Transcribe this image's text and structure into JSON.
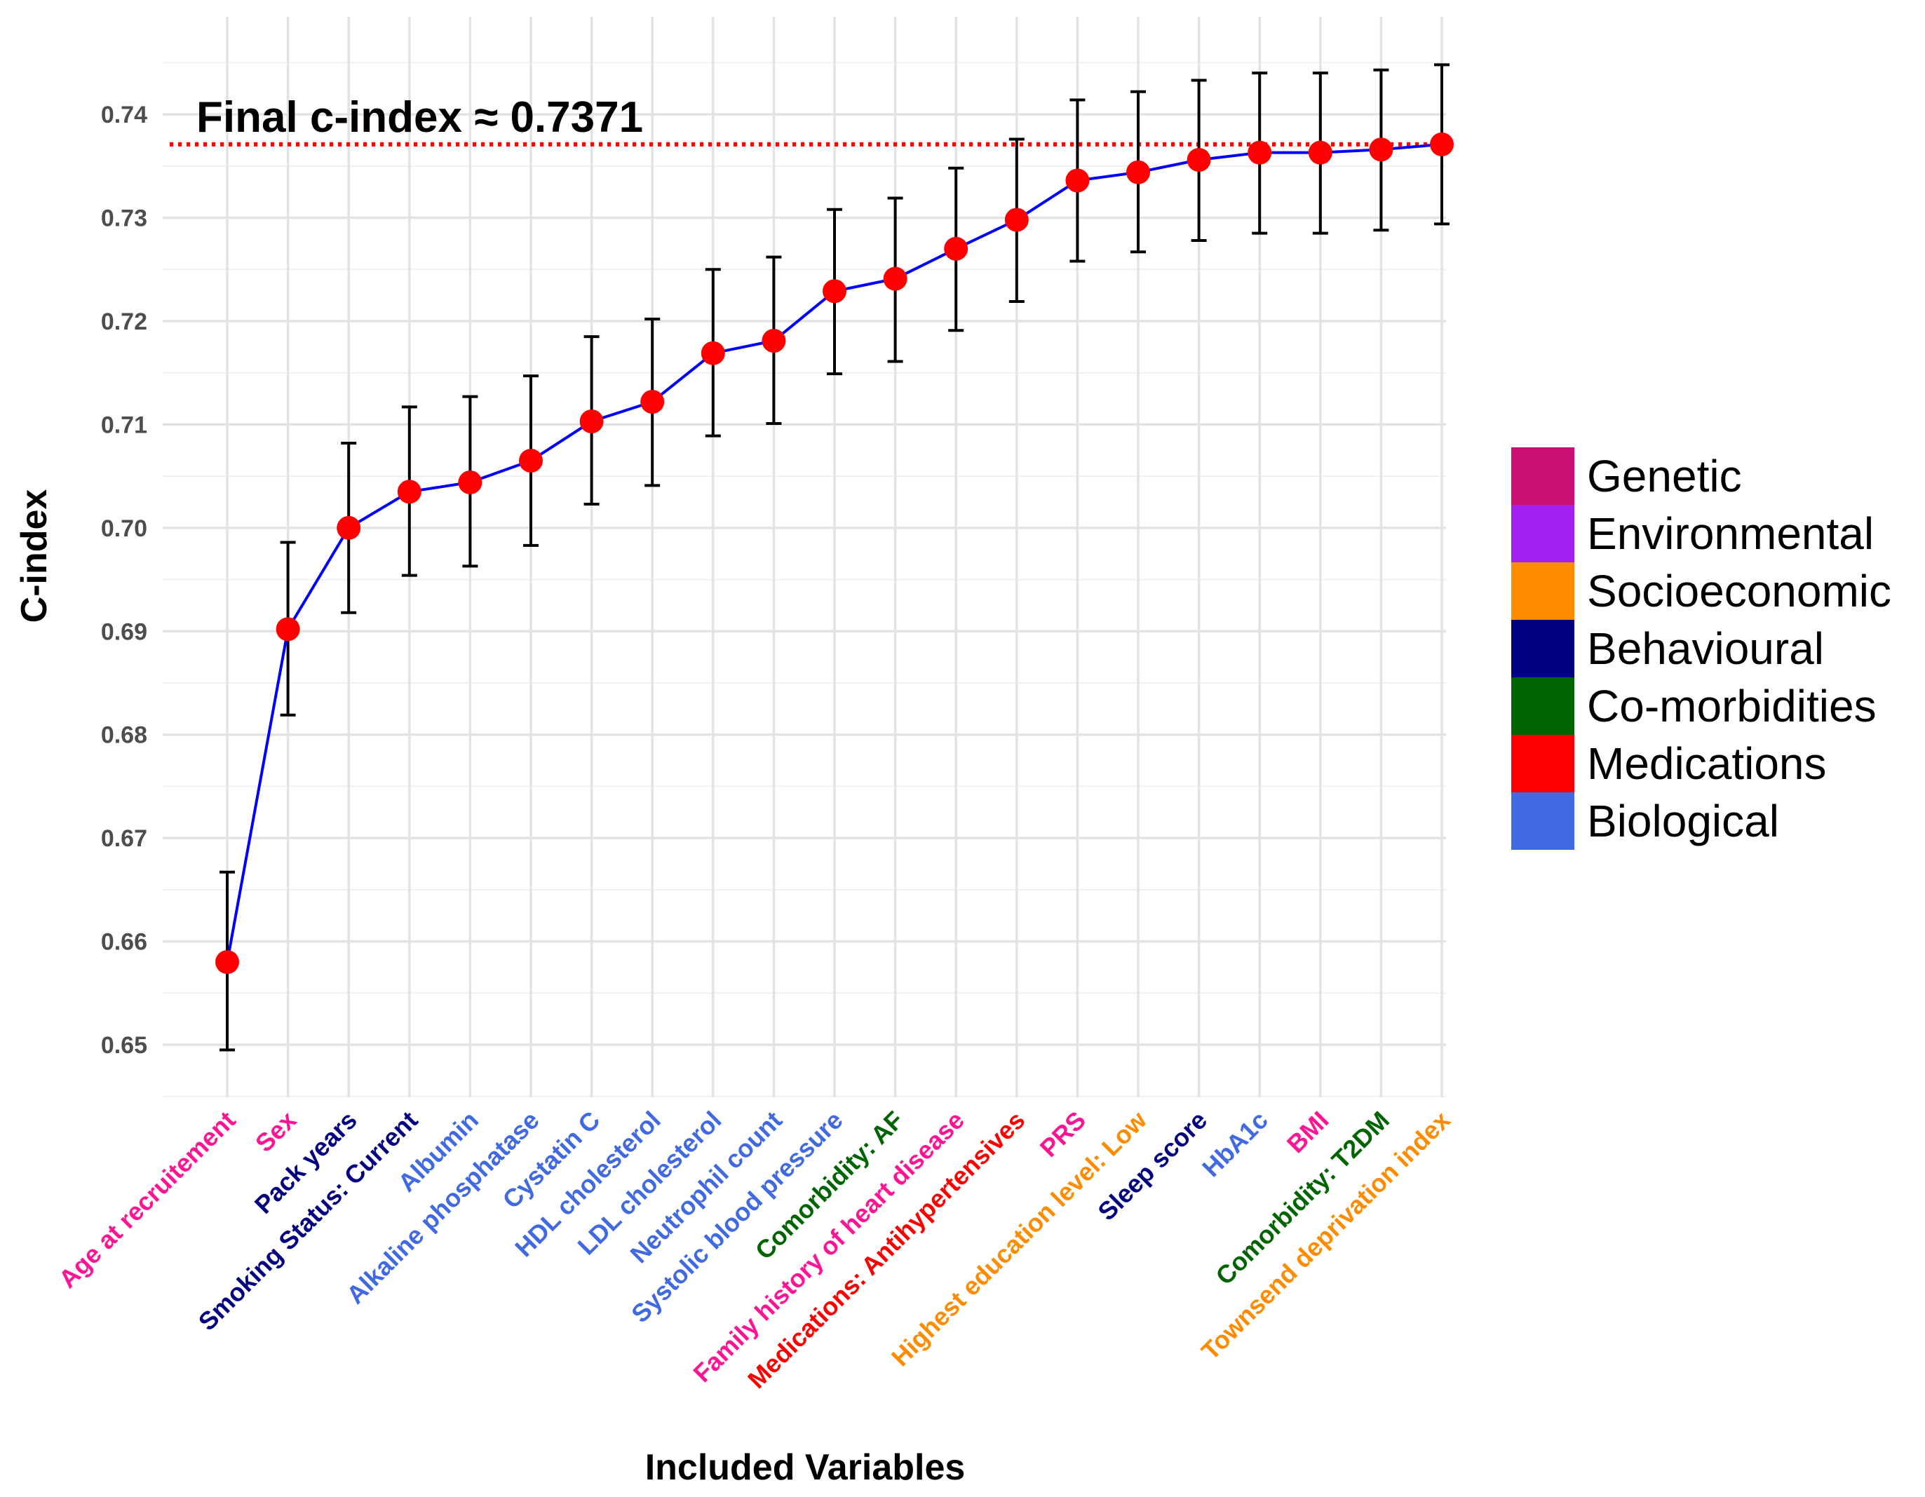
{
  "chart_data": {
    "type": "line",
    "xlabel": "Included Variables",
    "ylabel": "C-index",
    "ylim": [
      0.645,
      0.7465
    ],
    "yticks": [
      0.65,
      0.66,
      0.67,
      0.68,
      0.69,
      0.7,
      0.71,
      0.72,
      0.73,
      0.74
    ],
    "ytick_labels": [
      "0.65",
      "0.66",
      "0.67",
      "0.68",
      "0.69",
      "0.70",
      "0.71",
      "0.72",
      "0.73",
      "0.74"
    ],
    "grid": true,
    "legend_position": "right",
    "line_color": "#0000FF",
    "point_color": "#FF0000",
    "annotation": {
      "text": "Final c-index ≈ 0.7371",
      "y": 0.7371,
      "line_color": "#FF0000",
      "line_style": "dotted"
    },
    "categories": [
      "Age at recruitement",
      "Sex",
      "Pack years",
      "Smoking Status: Current",
      "Albumin",
      "Alkaline phosphatase",
      "Cystatin C",
      "HDL cholesterol",
      "LDL cholesterol",
      "Neutrophil count",
      "Systolic blood pressure",
      "Comorbidity: AF",
      "Family history of heart disease",
      "Medications: Antihypertensives",
      "PRS",
      "Highest education level: Low",
      "Sleep score",
      "HbA1c",
      "BMI",
      "Comorbidity: T2DM",
      "Townsend deprivation index"
    ],
    "category_groups": [
      "Genetic",
      "Genetic",
      "Behavioural",
      "Behavioural",
      "Biological",
      "Biological",
      "Biological",
      "Biological",
      "Biological",
      "Biological",
      "Biological",
      "Co-morbidities",
      "Genetic",
      "Medications",
      "Genetic",
      "Socioeconomic",
      "Behavioural",
      "Biological",
      "Genetic",
      "Co-morbidities",
      "Socioeconomic"
    ],
    "series": [
      {
        "values": [
          0.658,
          0.6902,
          0.7,
          0.7035,
          0.7044,
          0.7065,
          0.7103,
          0.7122,
          0.7169,
          0.7181,
          0.7229,
          0.7241,
          0.727,
          0.7298,
          0.7336,
          0.7344,
          0.7356,
          0.7363,
          0.7363,
          0.7366,
          0.7371
        ],
        "lower": [
          0.6495,
          0.6819,
          0.6918,
          0.6954,
          0.6963,
          0.6983,
          0.7023,
          0.7041,
          0.7089,
          0.7101,
          0.7149,
          0.7161,
          0.7191,
          0.7219,
          0.7258,
          0.7267,
          0.7278,
          0.7285,
          0.7285,
          0.7288,
          0.7294
        ],
        "upper": [
          0.6667,
          0.6986,
          0.7082,
          0.7117,
          0.7127,
          0.7147,
          0.7185,
          0.7202,
          0.725,
          0.7262,
          0.7308,
          0.7319,
          0.7348,
          0.7376,
          0.7414,
          0.7422,
          0.7433,
          0.744,
          0.744,
          0.7443,
          0.7448
        ]
      }
    ],
    "legend": [
      {
        "label": "Genetic",
        "color": "#CC1073"
      },
      {
        "label": "Environmental",
        "color": "#A020F0"
      },
      {
        "label": "Socioeconomic",
        "color": "#FF8C00"
      },
      {
        "label": "Behavioural",
        "color": "#000080"
      },
      {
        "label": "Co-morbidities",
        "color": "#006400"
      },
      {
        "label": "Medications",
        "color": "#FF0000"
      },
      {
        "label": "Biological",
        "color": "#4169E1"
      }
    ],
    "category_colors": {
      "Genetic": "#FF1493",
      "Environmental": "#A020F0",
      "Socioeconomic": "#FF8C00",
      "Behavioural": "#000080",
      "Co-morbidities": "#006400",
      "Medications": "#FF0000",
      "Biological": "#4169E1"
    }
  }
}
